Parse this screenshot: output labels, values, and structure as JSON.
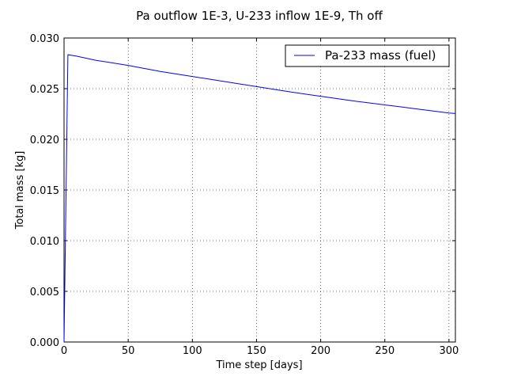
{
  "chart_data": {
    "type": "line",
    "title": "Pa outflow 1E-3, U-233 inflow 1E-9, Th off",
    "xlabel": "Time step [days]",
    "ylabel": "Total mass [kg]",
    "xlim": [
      0,
      305
    ],
    "ylim": [
      0,
      0.03
    ],
    "x_ticks": [
      0,
      50,
      100,
      150,
      200,
      250,
      300
    ],
    "y_ticks": [
      0.0,
      0.005,
      0.01,
      0.015,
      0.02,
      0.025,
      0.03
    ],
    "x_tick_labels": [
      "0",
      "50",
      "100",
      "150",
      "200",
      "250",
      "300"
    ],
    "y_tick_labels": [
      "0.000",
      "0.005",
      "0.010",
      "0.015",
      "0.020",
      "0.025",
      "0.030"
    ],
    "grid": true,
    "legend_position": "top-right",
    "series": [
      {
        "name": "Pa-233 mass (fuel)",
        "color": "#0000ff",
        "x": [
          0,
          3,
          10,
          25,
          50,
          75,
          100,
          125,
          150,
          175,
          200,
          225,
          250,
          275,
          300,
          305
        ],
        "y": [
          0.0,
          0.02835,
          0.0282,
          0.0278,
          0.0273,
          0.0267,
          0.0262,
          0.0257,
          0.0252,
          0.0247,
          0.02425,
          0.0238,
          0.0234,
          0.023,
          0.0226,
          0.02255
        ]
      }
    ]
  }
}
